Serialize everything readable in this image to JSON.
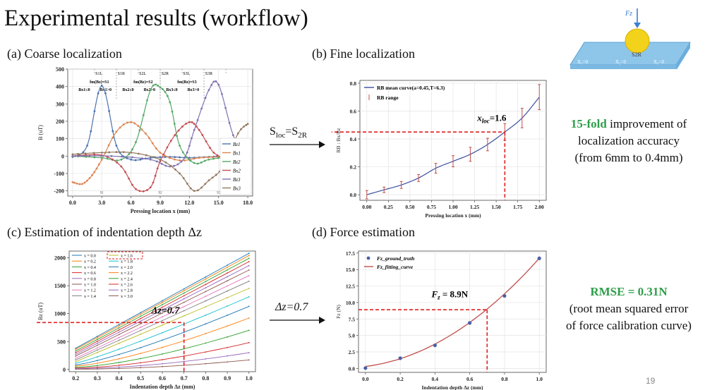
{
  "slide": {
    "title": "Experimental results (workflow)",
    "page_number": "19"
  },
  "panels": {
    "a_label": "(a) Coarse localization",
    "b_label": "(b) Fine localization",
    "c_label": "(c) Estimation of indentation depth Δz",
    "d_label": "(d) Force estimation"
  },
  "arrows": {
    "ab": "Sloc=S2R",
    "ab_main": "S",
    "ab_sub1": "loc",
    "ab_eq": "=S",
    "ab_sub2": "2R",
    "cd": "Δz=0.7"
  },
  "side_text": {
    "b_highlight": "15-fold",
    "b_line1_rest": " improvement of",
    "b_line2": "localization accuracy",
    "b_line3": "(from 6mm to 0.4mm)",
    "d_highlight": "RMSE = 0.31N",
    "d_line2": "(root mean squared error",
    "d_line3": "of force calibration curve)"
  },
  "schematic": {
    "force_label": "Fz",
    "ball_label": "S2R",
    "x_labels": [
      "X₁=0",
      "X₂=0",
      "X₃=0"
    ],
    "colors": {
      "plate": "#8ec6ea",
      "ball": "#f2d21b",
      "arrow": "#3b7fd0"
    }
  },
  "chart_data": [
    {
      "type": "line",
      "id": "a",
      "xlabel": "Pressing location x (mm)",
      "ylabel": "B (uT)",
      "xlim": [
        -0.5,
        18.5
      ],
      "ylim": [
        -230,
        500
      ],
      "xticks": [
        "0.0",
        "3.0",
        "6.0",
        "9.0",
        "12.0",
        "15.0",
        "18.0"
      ],
      "yticks": [
        "-200",
        "-100",
        "0",
        "100",
        "200",
        "300",
        "400",
        "500"
      ],
      "region_labels": [
        "S1L",
        "S1R",
        "S2L",
        "S2R",
        "S3L",
        "S3R"
      ],
      "conditions": [
        [
          "fm(Bz)=S1",
          "Bx1≤0",
          "Bx1>0"
        ],
        [
          "fm(Bz)=S2",
          "Bx2≤0",
          "Bx2>0"
        ],
        [
          "fm(Bz)=S3",
          "Bx3≤0",
          "Bx3>0"
        ]
      ],
      "ground_marks": [
        "S1",
        "S2",
        "S3"
      ],
      "series": [
        {
          "name": "Bz1",
          "color": "#4c72b0",
          "values": [
            [
              0,
              -5
            ],
            [
              1.5,
              60
            ],
            [
              3,
              405
            ],
            [
              4.5,
              60
            ],
            [
              6,
              -20
            ],
            [
              8,
              -10
            ],
            [
              10,
              -5
            ],
            [
              12,
              -10
            ],
            [
              14,
              -5
            ],
            [
              16,
              0
            ],
            [
              18,
              -5
            ]
          ]
        },
        {
          "name": "Bx1",
          "color": "#dd8452",
          "values": [
            [
              0,
              -150
            ],
            [
              1,
              -160
            ],
            [
              2,
              -110
            ],
            [
              3,
              -20
            ],
            [
              4.5,
              140
            ],
            [
              6,
              195
            ],
            [
              7.5,
              130
            ],
            [
              9,
              20
            ],
            [
              11,
              -25
            ],
            [
              13,
              -10
            ],
            [
              15,
              -5
            ],
            [
              18,
              0
            ]
          ]
        },
        {
          "name": "Bz2",
          "color": "#55a868",
          "values": [
            [
              0,
              0
            ],
            [
              3,
              -10
            ],
            [
              5,
              -20
            ],
            [
              6.5,
              80
            ],
            [
              8,
              380
            ],
            [
              9,
              395
            ],
            [
              10,
              310
            ],
            [
              11,
              60
            ],
            [
              12.5,
              -40
            ],
            [
              14,
              -20
            ],
            [
              16,
              -5
            ],
            [
              18,
              0
            ]
          ]
        },
        {
          "name": "Bx2",
          "color": "#c44e52",
          "values": [
            [
              0,
              0
            ],
            [
              3,
              5
            ],
            [
              5,
              -60
            ],
            [
              6.5,
              -190
            ],
            [
              8,
              -180
            ],
            [
              9,
              -30
            ],
            [
              10.5,
              120
            ],
            [
              12,
              195
            ],
            [
              13,
              150
            ],
            [
              14.5,
              20
            ],
            [
              16,
              -10
            ],
            [
              18,
              0
            ]
          ]
        },
        {
          "name": "Bz3",
          "color": "#8172b2",
          "values": [
            [
              0,
              0
            ],
            [
              4,
              0
            ],
            [
              8,
              -20
            ],
            [
              10,
              -60
            ],
            [
              11.5,
              -10
            ],
            [
              12.5,
              150
            ],
            [
              14,
              380
            ],
            [
              15,
              410
            ],
            [
              16.5,
              120
            ],
            [
              18,
              -40
            ]
          ]
        },
        {
          "name": "Bx3",
          "color": "#937860",
          "values": [
            [
              0,
              10
            ],
            [
              3,
              20
            ],
            [
              6,
              20
            ],
            [
              9,
              -20
            ],
            [
              11,
              -100
            ],
            [
              12.5,
              -200
            ],
            [
              14,
              -140
            ],
            [
              15.5,
              -60
            ],
            [
              17,
              130
            ],
            [
              18,
              185
            ]
          ]
        }
      ]
    },
    {
      "type": "line",
      "id": "b",
      "xlabel": "Pressing location x (mm)",
      "ylabel": "RB : Bx/Bz",
      "xlim": [
        -0.08,
        2.08
      ],
      "ylim": [
        -0.04,
        0.82
      ],
      "xticks": [
        "0.00",
        "0.25",
        "0.50",
        "0.75",
        "1.00",
        "1.25",
        "1.50",
        "1.75",
        "2.00"
      ],
      "yticks": [
        "0.0",
        "0.2",
        "0.4",
        "0.6",
        "0.8"
      ],
      "legend": [
        "RB mean curve(a=0.45,T=6.3)",
        "RB range"
      ],
      "annotation": "xloc=1.6",
      "annotation_main": "x",
      "annotation_sub": "loc",
      "annotation_val": "=1.6",
      "curve": {
        "a": 0.45,
        "T": 6.3
      },
      "points": [
        [
          0,
          0
        ],
        [
          0.2,
          0.035
        ],
        [
          0.4,
          0.07
        ],
        [
          0.6,
          0.12
        ],
        [
          0.8,
          0.19
        ],
        [
          1.0,
          0.24
        ],
        [
          1.2,
          0.29
        ],
        [
          1.4,
          0.36
        ],
        [
          1.6,
          0.45
        ],
        [
          1.8,
          0.55
        ],
        [
          2.0,
          0.7
        ]
      ],
      "errors": [
        0.03,
        0.02,
        0.025,
        0.025,
        0.035,
        0.04,
        0.05,
        0.045,
        0.06,
        0.07,
        0.09
      ],
      "marker": {
        "x": 1.6,
        "y": 0.45
      },
      "colors": {
        "curve": "#3b4fa0",
        "error": "#c0504d",
        "guide": "#e02020"
      }
    },
    {
      "type": "line",
      "id": "c",
      "xlabel": "Indentation depth Δz (mm)",
      "ylabel": "Bz (uT)",
      "xlim": [
        0.17,
        1.03
      ],
      "ylim": [
        -40,
        2120
      ],
      "xticks": [
        "0.2",
        "0.3",
        "0.4",
        "0.5",
        "0.6",
        "0.7",
        "0.8",
        "0.9",
        "1.0"
      ],
      "yticks": [
        "0",
        "500",
        "1000",
        "1500",
        "2000"
      ],
      "legend_left": [
        "x = 0.0",
        "x = 0.2",
        "x = 0.4",
        "x = 0.6",
        "x = 0.8",
        "x = 1.0",
        "x = 1.2",
        "x = 1.4"
      ],
      "legend_right": [
        "x = 1.6",
        "x = 1.8",
        "x = 2.0",
        "x = 2.2",
        "x = 2.4",
        "x = 2.6",
        "x = 2.8",
        "x = 3.0"
      ],
      "annotation": "Δz=0.7",
      "marker": {
        "x": 0.7,
        "y": 840
      },
      "end_values": [
        2080,
        2040,
        1990,
        1930,
        1860,
        1780,
        1680,
        1580,
        1450,
        1300,
        1130,
        920,
        700,
        480,
        300,
        170
      ],
      "start_values": [
        380,
        360,
        330,
        300,
        270,
        240,
        200,
        170,
        140,
        110,
        80,
        60,
        40,
        25,
        15,
        5
      ],
      "colors": [
        "#1f77b4",
        "#ff7f0e",
        "#2ca02c",
        "#d62728",
        "#9467bd",
        "#8c564b",
        "#e377c2",
        "#7f7f7f",
        "#bcbd22",
        "#17becf",
        "#1f77b4",
        "#ff7f0e",
        "#2ca02c",
        "#d62728",
        "#9467bd",
        "#8c564b"
      ],
      "guide_color": "#e02020"
    },
    {
      "type": "scatter",
      "id": "d",
      "xlabel": "Indentation depth Δz (mm)",
      "ylabel": "Fz (N)",
      "xlim": [
        -0.04,
        1.04
      ],
      "ylim": [
        -0.6,
        17.8
      ],
      "xticks": [
        "0.0",
        "0.2",
        "0.4",
        "0.6",
        "0.8",
        "1.0"
      ],
      "yticks": [
        "0.0",
        "2.5",
        "5.0",
        "7.5",
        "10.0",
        "12.5",
        "15.0",
        "17.5"
      ],
      "legend": [
        "Fz_ground_truth",
        "Fz_fitting_curve"
      ],
      "annotation": "Fz = 8.9N",
      "annotation_main": "F",
      "annotation_sub": "z",
      "annotation_val": " = 8.9N",
      "points": [
        [
          0,
          0.05
        ],
        [
          0.2,
          1.55
        ],
        [
          0.4,
          3.5
        ],
        [
          0.6,
          6.9
        ],
        [
          0.8,
          11.0
        ],
        [
          1.0,
          16.7
        ]
      ],
      "marker": {
        "x": 0.7,
        "y": 8.9
      },
      "colors": {
        "point": "#4a5fa8",
        "curve": "#c0504d",
        "guide": "#e02020"
      }
    }
  ]
}
